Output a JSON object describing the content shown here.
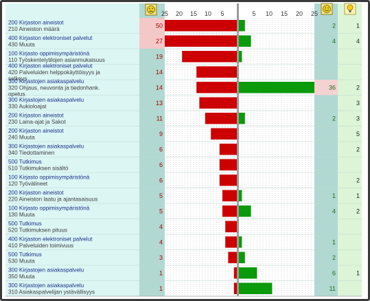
{
  "colors": {
    "neg_bar": "#cc0000",
    "pos_bar": "#0a9a0a",
    "neg_highlight": "#f5c8c8",
    "pos_highlight": "#f5d2d2",
    "label_bg": "#dcf6f4",
    "count_bg": "#b2d8d2",
    "last_col_bg": "#dcf5d6",
    "code_text": "#1a2f88",
    "desc_text": "#3c3c3c",
    "neg_count_text": "#a00000",
    "pos_count_text": "#1c6a1c"
  },
  "icons": {
    "sad": "sad-face-icon",
    "happy": "happy-face-icon",
    "idea": "lightbulb-icon"
  },
  "chart_data": {
    "type": "bar",
    "left_axis": {
      "ticks": [
        "25",
        "20",
        "15",
        "10",
        "5"
      ],
      "range": [
        25,
        0
      ]
    },
    "right_axis": {
      "ticks": [
        "5",
        "10",
        "15",
        "20",
        "25"
      ],
      "range": [
        0,
        25
      ]
    },
    "rows": [
      {
        "main": "200 Kirjaston aineistot",
        "sub": [
          "210 Aineiston määrä"
        ],
        "neg": 50,
        "pos": 2,
        "pos_label": "2",
        "extra": "1",
        "neg_hl": true
      },
      {
        "main": "400 Kirjaston elektroniset palvelut",
        "sub": [
          "430 Muuta"
        ],
        "neg": 27,
        "pos": 4,
        "pos_label": "4",
        "extra": "4",
        "neg_hl": true
      },
      {
        "main": "100 Kirjasto oppimisympäristönä",
        "sub": [
          "110 Työskentelytilojen asianmukaisuus"
        ],
        "neg": 19,
        "pos": 1,
        "pos_label": "",
        "extra": "",
        "neg_hl": false
      },
      {
        "main": "400 Kirjaston elektroniset palvelut",
        "sub": [
          "420 Palveluiden helppokäyttöisyys ja",
          "selkeys"
        ],
        "neg": 14,
        "pos": 0,
        "pos_label": "",
        "extra": "",
        "neg_hl": false
      },
      {
        "main": "300 Kirjastojen asiakaspalvelu",
        "sub": [
          "320 Ohjaus, neuvonta ja tiedonhank.",
          "opetus"
        ],
        "neg": 14,
        "pos": 36,
        "pos_label": "36",
        "extra": "2",
        "neg_hl": false,
        "pos_hl": true
      },
      {
        "main": "300 Kirjastojen asiakaspalvelu",
        "sub": [
          "330 Aukioloajat"
        ],
        "neg": 13,
        "pos": 0,
        "pos_label": "",
        "extra": "3",
        "neg_hl": false
      },
      {
        "main": "200 Kirjaston aineistot",
        "sub": [
          "230 Laina-ajat ja Sakot"
        ],
        "neg": 11,
        "pos": 2,
        "pos_label": "2",
        "extra": "3",
        "neg_hl": false
      },
      {
        "main": "200 Kirjaston aineistot",
        "sub": [
          "240 Muuta"
        ],
        "neg": 9,
        "pos": 0,
        "pos_label": "",
        "extra": "5",
        "neg_hl": false
      },
      {
        "main": "300 Kirjastojen asiakaspalvelu",
        "sub": [
          "340 Tiedottaminen"
        ],
        "neg": 6,
        "pos": 0,
        "pos_label": "",
        "extra": "2",
        "neg_hl": false
      },
      {
        "main": "500 Tutkimus",
        "sub": [
          "510 Tutkimuksen sisältö"
        ],
        "neg": 6,
        "pos": 0,
        "pos_label": "",
        "extra": "",
        "neg_hl": false
      },
      {
        "main": "100 Kirjasto oppimisympäristönä",
        "sub": [
          "120 Työvälineet"
        ],
        "neg": 6,
        "pos": 0,
        "pos_label": "",
        "extra": "2",
        "neg_hl": false
      },
      {
        "main": "200 Kirjaston aineistot",
        "sub": [
          "220 Aineiston laatu ja ajantasaisuus"
        ],
        "neg": 5,
        "pos": 1,
        "pos_label": "1",
        "extra": "1",
        "neg_hl": false
      },
      {
        "main": "100 Kirjasto oppimisympäristönä",
        "sub": [
          "130 Muuta"
        ],
        "neg": 5,
        "pos": 4,
        "pos_label": "4",
        "extra": "2",
        "neg_hl": false
      },
      {
        "main": "500 Tutkimus",
        "sub": [
          "520 Tutkimuksen pituus"
        ],
        "neg": 4,
        "pos": 0,
        "pos_label": "",
        "extra": "",
        "neg_hl": false
      },
      {
        "main": "400 Kirjaston elektroniset palvelut",
        "sub": [
          "410 Palveluiden toimivuus"
        ],
        "neg": 4,
        "pos": 1,
        "pos_label": "1",
        "extra": "",
        "neg_hl": false
      },
      {
        "main": "500 Tutkimus",
        "sub": [
          "530 Muuta"
        ],
        "neg": 3,
        "pos": 2,
        "pos_label": "2",
        "extra": "",
        "neg_hl": false
      },
      {
        "main": "300 Kirjastojen asiakaspalvelu",
        "sub": [
          "350 Muuta"
        ],
        "neg": 1,
        "pos": 6,
        "pos_label": "6",
        "extra": "1",
        "neg_hl": false
      },
      {
        "main": "300 Kirjastojen asiakaspalvelu",
        "sub": [
          "310 Asiakaspalvelijan ystävällisyys"
        ],
        "neg": 1,
        "pos": 11,
        "pos_label": "11",
        "extra": "",
        "neg_hl": false
      }
    ]
  }
}
